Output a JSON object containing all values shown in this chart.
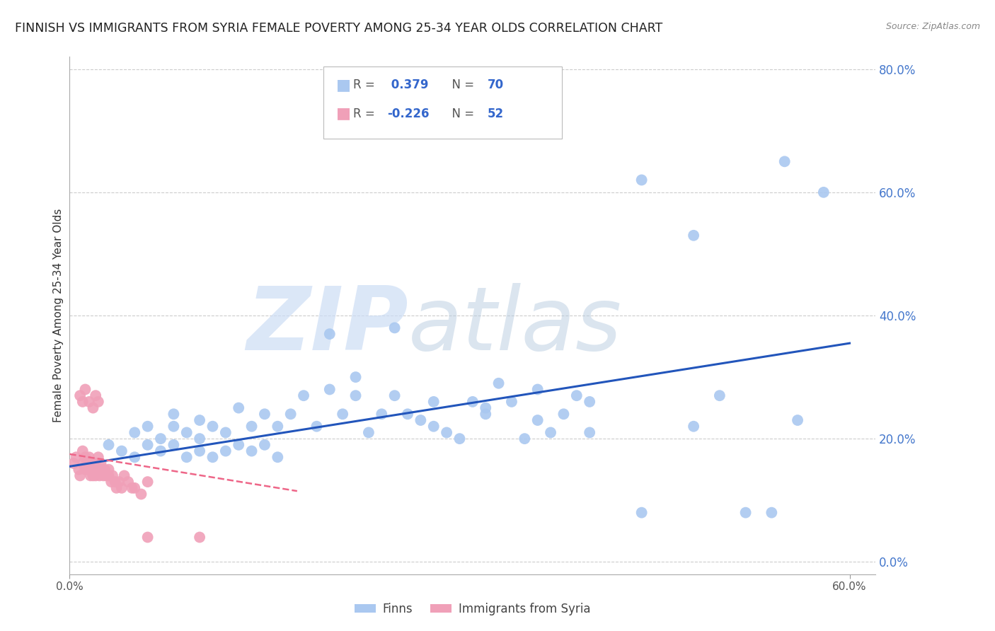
{
  "title": "FINNISH VS IMMIGRANTS FROM SYRIA FEMALE POVERTY AMONG 25-34 YEAR OLDS CORRELATION CHART",
  "source": "Source: ZipAtlas.com",
  "ylabel": "Female Poverty Among 25-34 Year Olds",
  "xlim": [
    0.0,
    0.62
  ],
  "ylim": [
    -0.02,
    0.82
  ],
  "xticks": [
    0.0,
    0.6
  ],
  "yticks": [
    0.0,
    0.2,
    0.4,
    0.6,
    0.8
  ],
  "xtick_labels": [
    "0.0%",
    "60.0%"
  ],
  "ytick_labels": [
    "0.0%",
    "20.0%",
    "40.0%",
    "60.0%",
    "80.0%"
  ],
  "finns_color": "#aac8f0",
  "syria_color": "#f0a0b8",
  "finns_line_color": "#2255bb",
  "syria_line_color": "#ee6688",
  "watermark_zip": "ZIP",
  "watermark_atlas": "atlas",
  "watermark_color_zip": "#c5d8f5",
  "watermark_color_atlas": "#b8cce8",
  "finns_x": [
    0.02,
    0.03,
    0.04,
    0.05,
    0.05,
    0.06,
    0.06,
    0.07,
    0.07,
    0.08,
    0.08,
    0.08,
    0.09,
    0.09,
    0.1,
    0.1,
    0.1,
    0.11,
    0.11,
    0.12,
    0.12,
    0.13,
    0.13,
    0.14,
    0.14,
    0.15,
    0.15,
    0.16,
    0.16,
    0.17,
    0.18,
    0.19,
    0.2,
    0.2,
    0.21,
    0.22,
    0.23,
    0.24,
    0.25,
    0.26,
    0.27,
    0.28,
    0.29,
    0.3,
    0.31,
    0.32,
    0.33,
    0.34,
    0.35,
    0.36,
    0.37,
    0.38,
    0.39,
    0.4,
    0.22,
    0.25,
    0.28,
    0.32,
    0.36,
    0.4,
    0.44,
    0.48,
    0.5,
    0.52,
    0.54,
    0.56,
    0.58,
    0.44,
    0.48,
    0.55
  ],
  "finns_y": [
    0.16,
    0.19,
    0.18,
    0.17,
    0.21,
    0.19,
    0.22,
    0.18,
    0.2,
    0.19,
    0.22,
    0.24,
    0.21,
    0.17,
    0.2,
    0.23,
    0.18,
    0.22,
    0.17,
    0.21,
    0.18,
    0.25,
    0.19,
    0.18,
    0.22,
    0.24,
    0.19,
    0.22,
    0.17,
    0.24,
    0.27,
    0.22,
    0.37,
    0.28,
    0.24,
    0.27,
    0.21,
    0.24,
    0.38,
    0.24,
    0.23,
    0.26,
    0.21,
    0.2,
    0.26,
    0.24,
    0.29,
    0.26,
    0.2,
    0.23,
    0.21,
    0.24,
    0.27,
    0.26,
    0.3,
    0.27,
    0.22,
    0.25,
    0.28,
    0.21,
    0.08,
    0.22,
    0.27,
    0.08,
    0.08,
    0.23,
    0.6,
    0.62,
    0.53,
    0.65
  ],
  "syria_x": [
    0.003,
    0.005,
    0.007,
    0.008,
    0.01,
    0.01,
    0.012,
    0.012,
    0.013,
    0.014,
    0.015,
    0.015,
    0.016,
    0.016,
    0.017,
    0.018,
    0.018,
    0.019,
    0.02,
    0.02,
    0.021,
    0.022,
    0.022,
    0.023,
    0.024,
    0.025,
    0.026,
    0.027,
    0.028,
    0.03,
    0.03,
    0.032,
    0.033,
    0.035,
    0.036,
    0.038,
    0.04,
    0.042,
    0.045,
    0.048,
    0.05,
    0.055,
    0.06,
    0.008,
    0.01,
    0.012,
    0.015,
    0.018,
    0.02,
    0.022,
    0.06,
    0.1
  ],
  "syria_y": [
    0.16,
    0.17,
    0.15,
    0.14,
    0.16,
    0.18,
    0.15,
    0.17,
    0.16,
    0.15,
    0.17,
    0.15,
    0.16,
    0.14,
    0.15,
    0.16,
    0.14,
    0.15,
    0.16,
    0.14,
    0.15,
    0.17,
    0.15,
    0.14,
    0.16,
    0.15,
    0.14,
    0.15,
    0.14,
    0.15,
    0.14,
    0.13,
    0.14,
    0.13,
    0.12,
    0.13,
    0.12,
    0.14,
    0.13,
    0.12,
    0.12,
    0.11,
    0.13,
    0.27,
    0.26,
    0.28,
    0.26,
    0.25,
    0.27,
    0.26,
    0.04,
    0.04
  ],
  "finns_line": {
    "x0": 0.0,
    "x1": 0.6,
    "y0": 0.155,
    "y1": 0.355
  },
  "syria_line": {
    "x0": 0.0,
    "x1": 0.175,
    "y0": 0.175,
    "y1": 0.115
  },
  "background_color": "#ffffff",
  "grid_color": "#cccccc",
  "title_fontsize": 12.5,
  "axis_label_fontsize": 11,
  "tick_fontsize": 11,
  "legend_R1": "R =  0.379   N = 70",
  "legend_R2": "R = -0.226   N = 52"
}
